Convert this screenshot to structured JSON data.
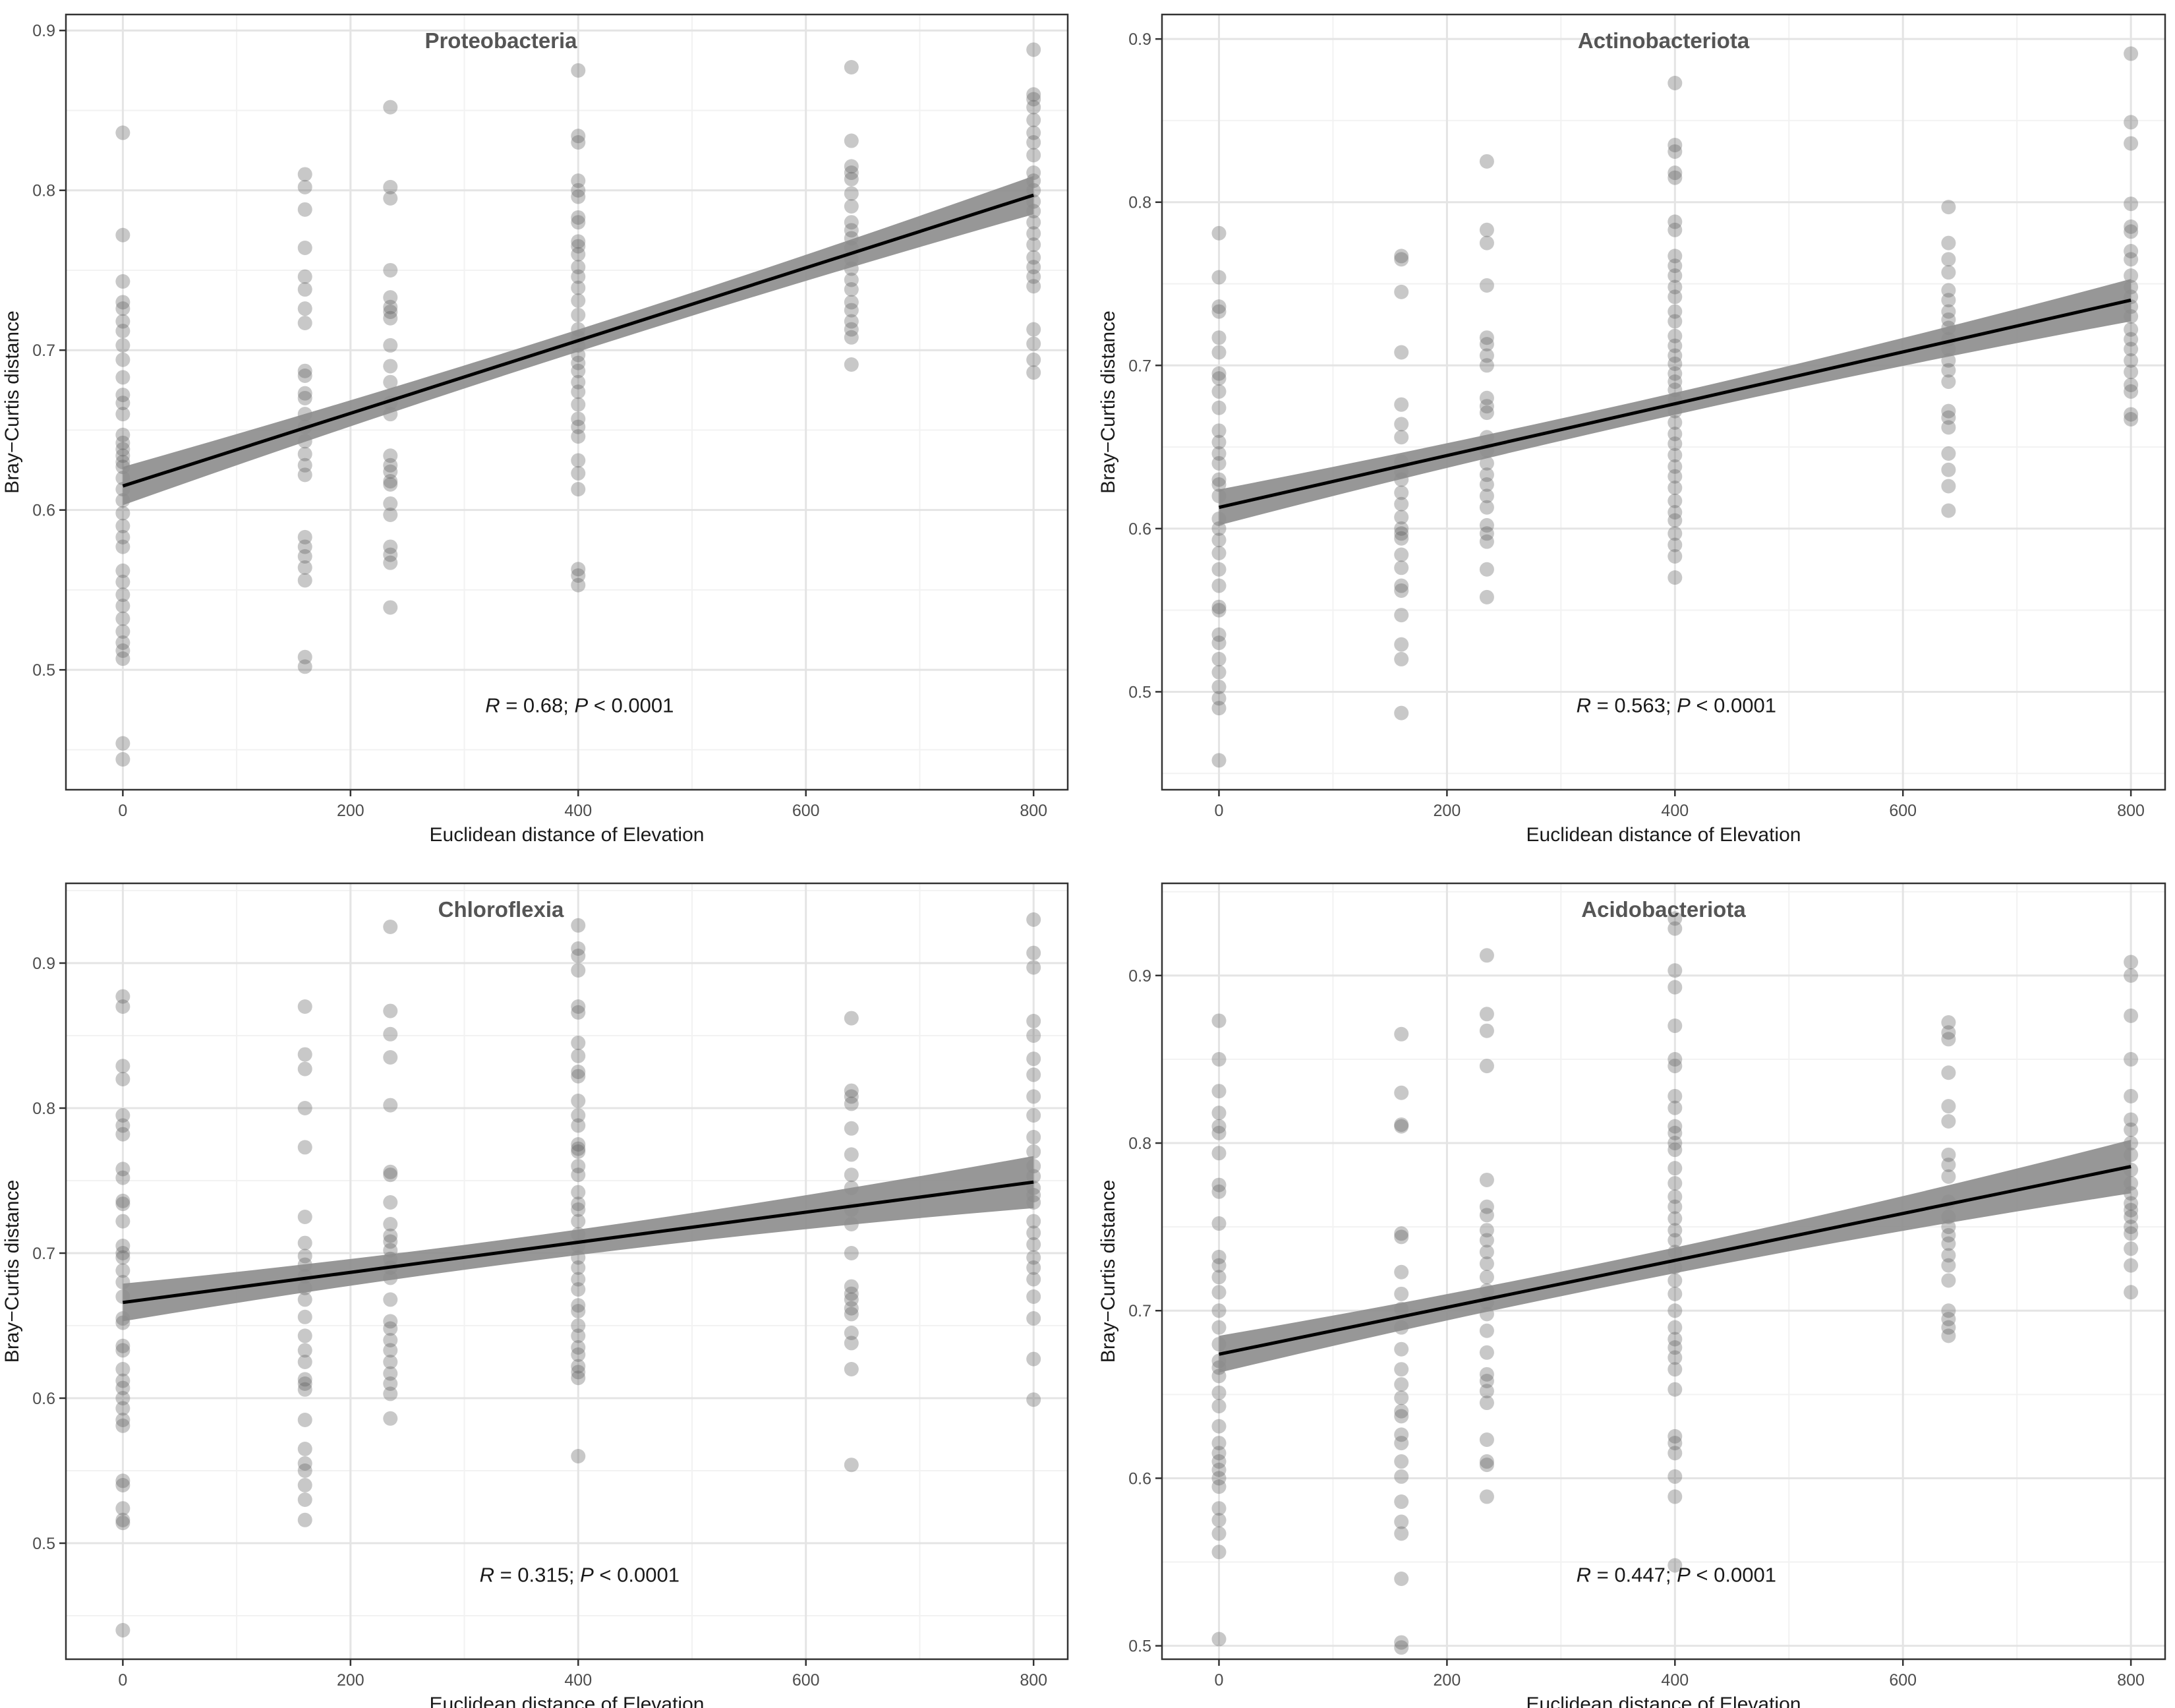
{
  "figure": {
    "panel_count": 4
  },
  "chart_data": [
    {
      "id": "proteobacteria",
      "type": "scatter",
      "title": "Proteobacteria",
      "xlabel": "Euclidean distance of Elevation",
      "ylabel": "Bray−Curtis distance",
      "xlim": [
        -50,
        830
      ],
      "ylim": [
        0.425,
        0.91
      ],
      "xticks": [
        0,
        200,
        400,
        600,
        800
      ],
      "xtick_labels": [
        "0",
        "200",
        "400",
        "600",
        "800"
      ],
      "yticks": [
        0.5,
        0.6,
        0.7,
        0.8,
        0.9
      ],
      "ytick_labels": [
        "0.5",
        "0.6",
        "0.7",
        "0.8",
        "0.9"
      ],
      "grid": true,
      "fit": {
        "x": [
          0,
          800
        ],
        "y": [
          0.615,
          0.797
        ],
        "ci_halfwidth": [
          0.012,
          0.012
        ],
        "ci_mid": 0.006
      },
      "stats": {
        "r_label": "R",
        "r_text": " = 0.68;  ",
        "p_label": "P",
        "p_text": " < 0.0001"
      },
      "series": [
        {
          "x": 0,
          "y": [
            0.836,
            0.772,
            0.743,
            0.73,
            0.726,
            0.718,
            0.712,
            0.703,
            0.694,
            0.683,
            0.672,
            0.667,
            0.66,
            0.647,
            0.642,
            0.638,
            0.634,
            0.63,
            0.627,
            0.62,
            0.613,
            0.606,
            0.598,
            0.59,
            0.583,
            0.577,
            0.562,
            0.555,
            0.547,
            0.54,
            0.532,
            0.524,
            0.517,
            0.512,
            0.507,
            0.454,
            0.444
          ]
        },
        {
          "x": 160,
          "y": [
            0.81,
            0.802,
            0.788,
            0.764,
            0.746,
            0.738,
            0.726,
            0.717,
            0.687,
            0.684,
            0.673,
            0.67,
            0.66,
            0.652,
            0.643,
            0.635,
            0.628,
            0.622,
            0.583,
            0.577,
            0.571,
            0.564,
            0.556,
            0.508,
            0.502
          ]
        },
        {
          "x": 235,
          "y": [
            0.852,
            0.802,
            0.795,
            0.75,
            0.733,
            0.727,
            0.724,
            0.72,
            0.703,
            0.69,
            0.68,
            0.667,
            0.66,
            0.634,
            0.628,
            0.624,
            0.618,
            0.616,
            0.604,
            0.597,
            0.577,
            0.572,
            0.567,
            0.539
          ]
        },
        {
          "x": 400,
          "y": [
            0.875,
            0.834,
            0.83,
            0.806,
            0.8,
            0.796,
            0.783,
            0.78,
            0.768,
            0.765,
            0.76,
            0.752,
            0.746,
            0.739,
            0.731,
            0.722,
            0.713,
            0.708,
            0.703,
            0.697,
            0.692,
            0.687,
            0.68,
            0.674,
            0.666,
            0.657,
            0.652,
            0.646,
            0.631,
            0.623,
            0.613,
            0.563,
            0.559,
            0.553
          ]
        },
        {
          "x": 640,
          "y": [
            0.877,
            0.831,
            0.815,
            0.811,
            0.807,
            0.798,
            0.79,
            0.78,
            0.775,
            0.77,
            0.764,
            0.757,
            0.751,
            0.744,
            0.738,
            0.73,
            0.725,
            0.718,
            0.713,
            0.708,
            0.691
          ]
        },
        {
          "x": 800,
          "y": [
            0.888,
            0.86,
            0.857,
            0.852,
            0.844,
            0.836,
            0.83,
            0.822,
            0.811,
            0.806,
            0.8,
            0.793,
            0.787,
            0.78,
            0.773,
            0.766,
            0.758,
            0.752,
            0.746,
            0.74,
            0.713,
            0.704,
            0.694,
            0.686
          ]
        }
      ]
    },
    {
      "id": "actinobacteriota",
      "type": "scatter",
      "title": "Actinobacteriota",
      "xlabel": "Euclidean distance of Elevation",
      "ylabel": "Bray−Curtis distance",
      "xlim": [
        -50,
        830
      ],
      "ylim": [
        0.44,
        0.915
      ],
      "xticks": [
        0,
        200,
        400,
        600,
        800
      ],
      "xtick_labels": [
        "0",
        "200",
        "400",
        "600",
        "800"
      ],
      "yticks": [
        0.5,
        0.6,
        0.7,
        0.8,
        0.9
      ],
      "ytick_labels": [
        "0.5",
        "0.6",
        "0.7",
        "0.8",
        "0.9"
      ],
      "grid": true,
      "fit": {
        "x": [
          0,
          800
        ],
        "y": [
          0.613,
          0.74
        ],
        "ci_halfwidth": [
          0.011,
          0.013
        ],
        "ci_mid": 0.005
      },
      "stats": {
        "r_label": "R",
        "r_text": " = 0.563;  ",
        "p_label": "P",
        "p_text": " < 0.0001"
      },
      "series": [
        {
          "x": 0,
          "y": [
            0.781,
            0.754,
            0.736,
            0.733,
            0.717,
            0.708,
            0.695,
            0.692,
            0.684,
            0.674,
            0.66,
            0.653,
            0.646,
            0.64,
            0.63,
            0.627,
            0.62,
            0.606,
            0.6,
            0.593,
            0.585,
            0.575,
            0.565,
            0.552,
            0.55,
            0.535,
            0.53,
            0.52,
            0.512,
            0.503,
            0.496,
            0.49,
            0.458
          ]
        },
        {
          "x": 160,
          "y": [
            0.767,
            0.765,
            0.745,
            0.708,
            0.676,
            0.664,
            0.656,
            0.641,
            0.635,
            0.63,
            0.622,
            0.615,
            0.607,
            0.6,
            0.597,
            0.594,
            0.584,
            0.576,
            0.565,
            0.562,
            0.547,
            0.529,
            0.52,
            0.487
          ]
        },
        {
          "x": 235,
          "y": [
            0.825,
            0.783,
            0.775,
            0.749,
            0.717,
            0.713,
            0.706,
            0.7,
            0.68,
            0.675,
            0.671,
            0.656,
            0.648,
            0.64,
            0.633,
            0.627,
            0.62,
            0.613,
            0.602,
            0.597,
            0.592,
            0.575,
            0.558
          ]
        },
        {
          "x": 400,
          "y": [
            0.873,
            0.835,
            0.831,
            0.818,
            0.815,
            0.788,
            0.783,
            0.767,
            0.761,
            0.755,
            0.748,
            0.742,
            0.733,
            0.727,
            0.718,
            0.712,
            0.706,
            0.701,
            0.695,
            0.69,
            0.685,
            0.679,
            0.672,
            0.665,
            0.658,
            0.652,
            0.645,
            0.638,
            0.632,
            0.625,
            0.617,
            0.61,
            0.605,
            0.597,
            0.59,
            0.583,
            0.57
          ]
        },
        {
          "x": 640,
          "y": [
            0.797,
            0.775,
            0.765,
            0.757,
            0.746,
            0.74,
            0.733,
            0.728,
            0.723,
            0.716,
            0.71,
            0.703,
            0.697,
            0.69,
            0.672,
            0.668,
            0.662,
            0.646,
            0.636,
            0.626,
            0.611
          ]
        },
        {
          "x": 800,
          "y": [
            0.891,
            0.849,
            0.836,
            0.799,
            0.785,
            0.782,
            0.77,
            0.765,
            0.755,
            0.748,
            0.742,
            0.736,
            0.73,
            0.722,
            0.716,
            0.71,
            0.703,
            0.696,
            0.688,
            0.684,
            0.67,
            0.667
          ]
        }
      ]
    },
    {
      "id": "chloroflexia",
      "type": "scatter",
      "title": "Chloroflexia",
      "xlabel": "Euclidean distance of Elevation",
      "ylabel": "Bray−Curtis distance",
      "xlim": [
        -50,
        830
      ],
      "ylim": [
        0.42,
        0.955
      ],
      "xticks": [
        0,
        200,
        400,
        600,
        800
      ],
      "xtick_labels": [
        "0",
        "200",
        "400",
        "600",
        "800"
      ],
      "yticks": [
        0.5,
        0.6,
        0.7,
        0.8,
        0.9
      ],
      "ytick_labels": [
        "0.5",
        "0.6",
        "0.7",
        "0.8",
        "0.9"
      ],
      "grid": true,
      "fit": {
        "x": [
          0,
          800
        ],
        "y": [
          0.666,
          0.749
        ],
        "ci_halfwidth": [
          0.013,
          0.018
        ],
        "ci_mid": 0.007
      },
      "stats": {
        "r_label": "R",
        "r_text": " = 0.315;  ",
        "p_label": "P",
        "p_text": " < 0.0001"
      },
      "series": [
        {
          "x": 0,
          "y": [
            0.877,
            0.87,
            0.829,
            0.82,
            0.795,
            0.788,
            0.782,
            0.758,
            0.752,
            0.736,
            0.734,
            0.722,
            0.705,
            0.7,
            0.697,
            0.688,
            0.68,
            0.67,
            0.655,
            0.652,
            0.636,
            0.633,
            0.62,
            0.612,
            0.607,
            0.6,
            0.593,
            0.585,
            0.581,
            0.543,
            0.54,
            0.524,
            0.516,
            0.514,
            0.44
          ]
        },
        {
          "x": 160,
          "y": [
            0.87,
            0.837,
            0.827,
            0.8,
            0.773,
            0.725,
            0.707,
            0.698,
            0.692,
            0.684,
            0.676,
            0.668,
            0.656,
            0.643,
            0.633,
            0.625,
            0.613,
            0.61,
            0.606,
            0.585,
            0.565,
            0.555,
            0.55,
            0.54,
            0.53,
            0.516
          ]
        },
        {
          "x": 235,
          "y": [
            0.925,
            0.867,
            0.851,
            0.835,
            0.802,
            0.756,
            0.754,
            0.735,
            0.72,
            0.712,
            0.708,
            0.702,
            0.696,
            0.69,
            0.683,
            0.668,
            0.653,
            0.648,
            0.64,
            0.633,
            0.625,
            0.617,
            0.61,
            0.603,
            0.586
          ]
        },
        {
          "x": 400,
          "y": [
            0.926,
            0.91,
            0.905,
            0.895,
            0.87,
            0.866,
            0.845,
            0.836,
            0.825,
            0.822,
            0.805,
            0.795,
            0.788,
            0.775,
            0.772,
            0.77,
            0.76,
            0.754,
            0.742,
            0.734,
            0.73,
            0.722,
            0.713,
            0.705,
            0.697,
            0.69,
            0.682,
            0.675,
            0.664,
            0.66,
            0.65,
            0.643,
            0.635,
            0.63,
            0.622,
            0.618,
            0.614,
            0.56
          ]
        },
        {
          "x": 640,
          "y": [
            0.862,
            0.812,
            0.808,
            0.803,
            0.786,
            0.768,
            0.754,
            0.745,
            0.73,
            0.72,
            0.7,
            0.677,
            0.672,
            0.668,
            0.662,
            0.658,
            0.645,
            0.638,
            0.62,
            0.554
          ]
        },
        {
          "x": 800,
          "y": [
            0.93,
            0.907,
            0.897,
            0.86,
            0.85,
            0.834,
            0.823,
            0.808,
            0.795,
            0.78,
            0.77,
            0.76,
            0.753,
            0.745,
            0.74,
            0.735,
            0.722,
            0.714,
            0.706,
            0.697,
            0.69,
            0.682,
            0.67,
            0.655,
            0.627,
            0.599
          ]
        }
      ]
    },
    {
      "id": "acidobacteriota",
      "type": "scatter",
      "title": "Acidobacteriota",
      "xlabel": "Euclidean distance of Elevation",
      "ylabel": "Bray−Curtis distance",
      "xlim": [
        -50,
        830
      ],
      "ylim": [
        0.492,
        0.955
      ],
      "xticks": [
        0,
        200,
        400,
        600,
        800
      ],
      "xtick_labels": [
        "0",
        "200",
        "400",
        "600",
        "800"
      ],
      "yticks": [
        0.5,
        0.6,
        0.7,
        0.8,
        0.9
      ],
      "ytick_labels": [
        "0.5",
        "0.6",
        "0.7",
        "0.8",
        "0.9"
      ],
      "grid": true,
      "fit": {
        "x": [
          0,
          800
        ],
        "y": [
          0.674,
          0.786
        ],
        "ci_halfwidth": [
          0.011,
          0.016
        ],
        "ci_mid": 0.006
      },
      "stats": {
        "r_label": "R",
        "r_text": " = 0.447;  ",
        "p_label": "P",
        "p_text": " < 0.0001"
      },
      "series": [
        {
          "x": 0,
          "y": [
            0.873,
            0.85,
            0.831,
            0.818,
            0.81,
            0.806,
            0.794,
            0.775,
            0.771,
            0.752,
            0.732,
            0.727,
            0.72,
            0.711,
            0.7,
            0.69,
            0.68,
            0.67,
            0.666,
            0.661,
            0.651,
            0.643,
            0.631,
            0.621,
            0.615,
            0.61,
            0.605,
            0.6,
            0.595,
            0.582,
            0.575,
            0.567,
            0.556,
            0.504
          ]
        },
        {
          "x": 160,
          "y": [
            0.865,
            0.83,
            0.811,
            0.81,
            0.746,
            0.744,
            0.723,
            0.71,
            0.701,
            0.69,
            0.677,
            0.665,
            0.656,
            0.648,
            0.64,
            0.637,
            0.626,
            0.621,
            0.61,
            0.601,
            0.586,
            0.574,
            0.567,
            0.54,
            0.502,
            0.499
          ]
        },
        {
          "x": 235,
          "y": [
            0.912,
            0.877,
            0.867,
            0.846,
            0.778,
            0.762,
            0.757,
            0.748,
            0.742,
            0.735,
            0.728,
            0.72,
            0.712,
            0.705,
            0.698,
            0.688,
            0.675,
            0.662,
            0.658,
            0.652,
            0.645,
            0.623,
            0.61,
            0.608,
            0.589
          ]
        },
        {
          "x": 400,
          "y": [
            0.934,
            0.928,
            0.903,
            0.893,
            0.87,
            0.85,
            0.846,
            0.828,
            0.821,
            0.81,
            0.806,
            0.8,
            0.796,
            0.785,
            0.776,
            0.768,
            0.762,
            0.755,
            0.748,
            0.742,
            0.735,
            0.726,
            0.718,
            0.71,
            0.7,
            0.69,
            0.683,
            0.678,
            0.672,
            0.665,
            0.653,
            0.625,
            0.621,
            0.615,
            0.601,
            0.589,
            0.548
          ]
        },
        {
          "x": 640,
          "y": [
            0.872,
            0.866,
            0.862,
            0.842,
            0.822,
            0.813,
            0.793,
            0.787,
            0.78,
            0.765,
            0.756,
            0.75,
            0.745,
            0.74,
            0.733,
            0.727,
            0.718,
            0.7,
            0.695,
            0.69,
            0.685
          ]
        },
        {
          "x": 800,
          "y": [
            0.908,
            0.9,
            0.876,
            0.85,
            0.828,
            0.814,
            0.808,
            0.8,
            0.793,
            0.784,
            0.776,
            0.77,
            0.764,
            0.76,
            0.756,
            0.75,
            0.746,
            0.737,
            0.727,
            0.711
          ]
        }
      ]
    }
  ]
}
